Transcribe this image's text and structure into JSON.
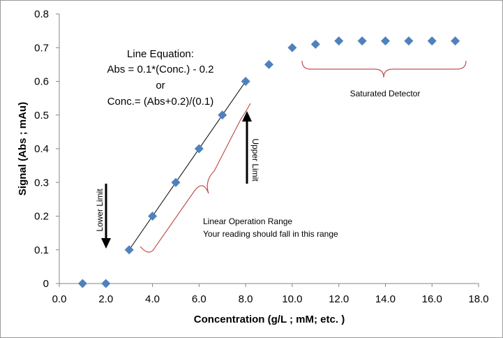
{
  "chart_data": {
    "type": "scatter",
    "title": "",
    "xlabel": "Concentration (g/L ; mM; etc. )",
    "ylabel": "Signal (Abs ; mAu)",
    "xlim": [
      0,
      18
    ],
    "ylim": [
      0,
      0.8
    ],
    "x_ticks": [
      "0.0",
      "2.0",
      "4.0",
      "6.0",
      "8.0",
      "10.0",
      "12.0",
      "14.0",
      "16.0",
      "18.0"
    ],
    "y_ticks": [
      "0",
      "0.1",
      "0.2",
      "0.3",
      "0.4",
      "0.5",
      "0.6",
      "0.7",
      "0.8"
    ],
    "grid": false,
    "legend": "none",
    "marker_color": "#4f81bd",
    "series": [
      {
        "name": "Signal",
        "x": [
          1,
          2,
          3,
          4,
          5,
          6,
          7,
          8,
          9,
          10,
          11,
          12,
          13,
          14,
          15,
          16,
          17
        ],
        "y": [
          0,
          0,
          0.1,
          0.2,
          0.3,
          0.4,
          0.5,
          0.6,
          0.65,
          0.7,
          0.71,
          0.72,
          0.72,
          0.72,
          0.72,
          0.72,
          0.72
        ]
      }
    ],
    "fit_line": {
      "x": [
        3,
        8
      ],
      "y": [
        0.1,
        0.6
      ],
      "color": "#000000"
    },
    "annotations": {
      "equation_title": "Line Equation:",
      "equation_abs": "Abs = 0.1*(Conc.) - 0.2",
      "equation_or": "or",
      "equation_conc": "Conc.= (Abs+0.2)/(0.1)",
      "saturated": "Saturated Detector",
      "linear_range_1": "Linear Operation Range",
      "linear_range_2": "Your reading should fall in this range",
      "lower_limit": "Lower Limit",
      "upper_limit": "Upper Limit"
    },
    "brace_color": "#c0504d"
  }
}
